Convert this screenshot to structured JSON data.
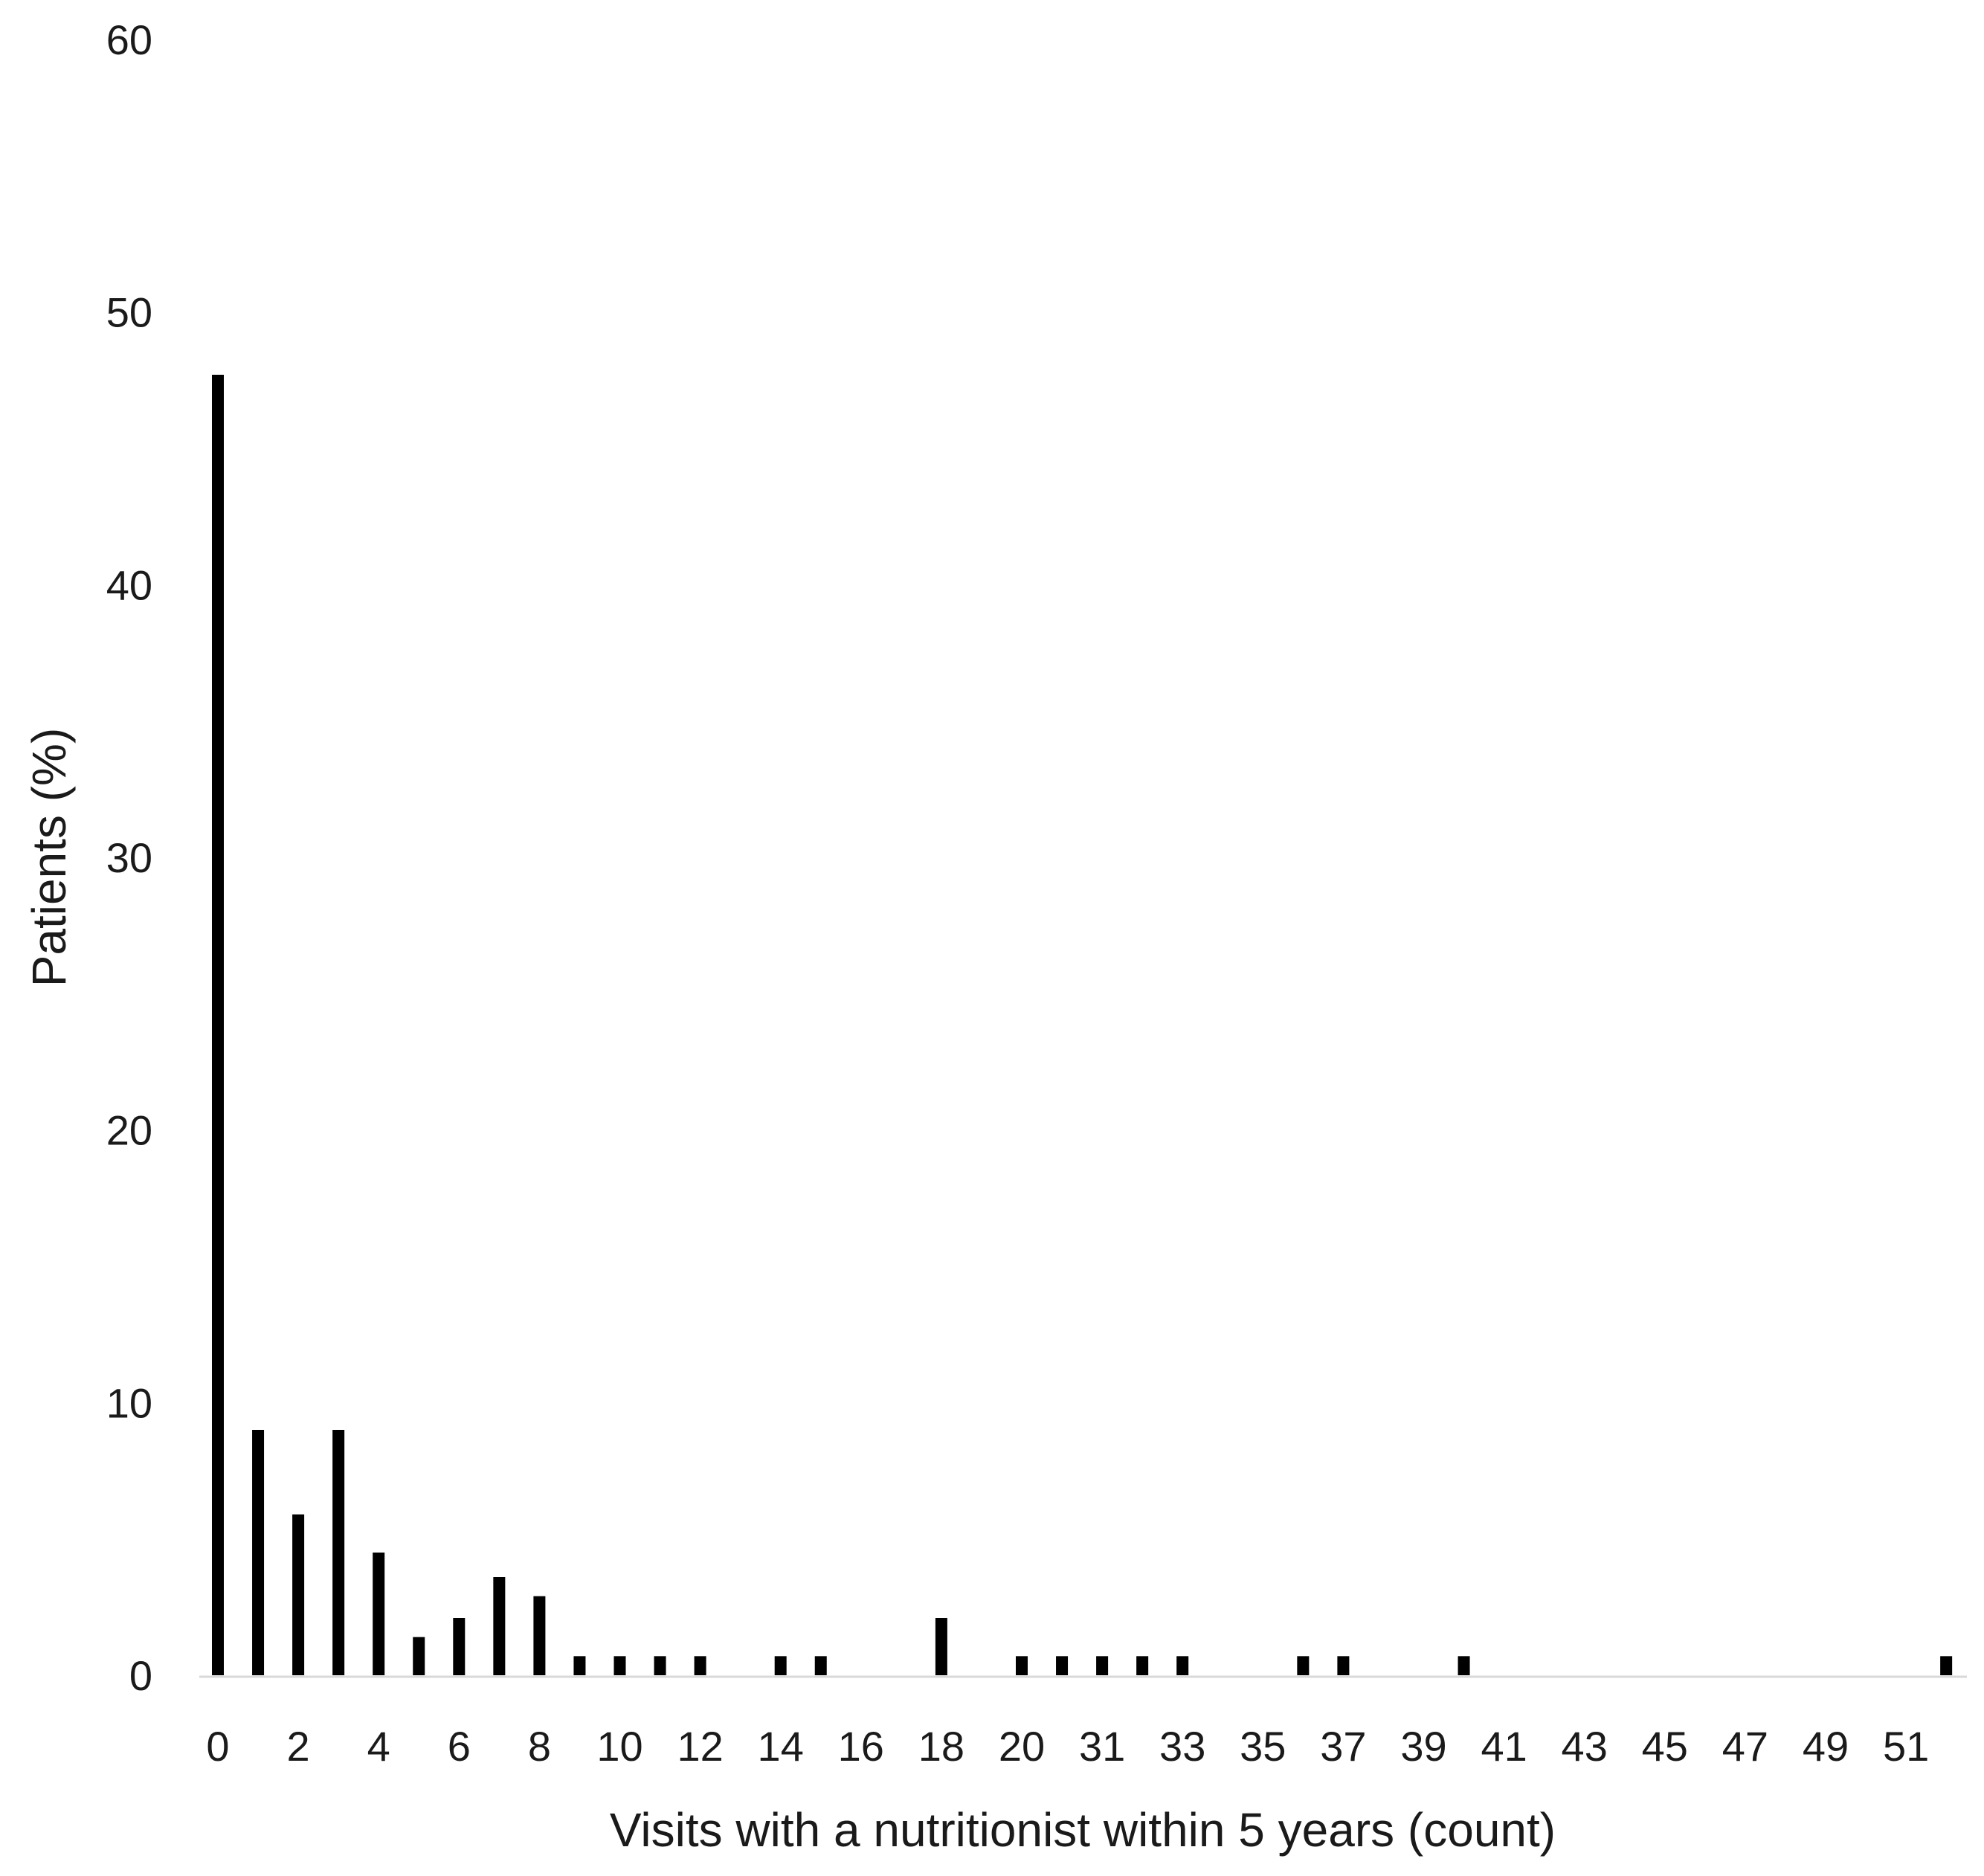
{
  "chart_data": {
    "type": "bar",
    "title": "",
    "xlabel": "Visits with a nutritionist within 5 years (count)",
    "ylabel": "Patients (%)",
    "ylim": [
      0,
      60
    ],
    "y_ticks": [
      "0",
      "10",
      "20",
      "30",
      "40",
      "50",
      "60"
    ],
    "x_tick_labels": [
      "0",
      "2",
      "4",
      "6",
      "8",
      "10",
      "12",
      "14",
      "16",
      "18",
      "20",
      "31",
      "33",
      "35",
      "37",
      "39",
      "41",
      "43",
      "45",
      "47",
      "49",
      "51"
    ],
    "grid": false,
    "legend": "none",
    "bar_color": "#000000",
    "categories": [
      "0",
      "1",
      "2",
      "3",
      "4",
      "5",
      "6",
      "7",
      "8",
      "9",
      "10",
      "11",
      "12",
      "13",
      "14",
      "15",
      "16",
      "17",
      "18",
      "19",
      "20",
      "30",
      "31",
      "32",
      "33",
      "34",
      "35",
      "36",
      "37",
      "38",
      "39",
      "40",
      "41",
      "42",
      "43",
      "44",
      "45",
      "46",
      "47",
      "48",
      "49",
      "50",
      "51",
      "52"
    ],
    "values": [
      47.7,
      9.0,
      5.9,
      9.0,
      4.5,
      1.4,
      2.1,
      3.6,
      2.9,
      0.7,
      0.7,
      0.7,
      0.7,
      0,
      0.7,
      0.7,
      0,
      0,
      2.1,
      0,
      0.7,
      0.7,
      0.7,
      0.7,
      0.7,
      0,
      0,
      0.7,
      0.7,
      0,
      0,
      0.7,
      0,
      0,
      0,
      0,
      0,
      0,
      0,
      0,
      0,
      0,
      0,
      0.7
    ]
  }
}
